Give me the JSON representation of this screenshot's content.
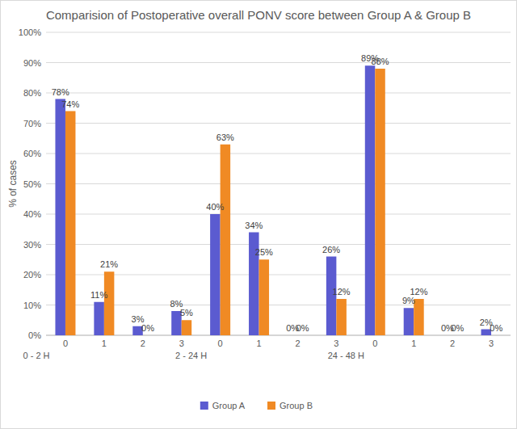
{
  "chart_data": {
    "type": "bar",
    "title": "Comparision of Postoperative overall PONV score between Group A & Group B",
    "y_label": "% of cases",
    "categories": [
      "0",
      "1",
      "2",
      "3",
      "0",
      "1",
      "2",
      "3",
      "0",
      "1",
      "2",
      "3"
    ],
    "category_groups": [
      "0 - 2 H",
      "2 - 24 H",
      "24 - 48 H"
    ],
    "series": [
      {
        "name": "Group A",
        "color": "#5b5bd0",
        "values": [
          78,
          11,
          3,
          8,
          40,
          34,
          0,
          26,
          89,
          9,
          0,
          2
        ],
        "value_labels": [
          "78%",
          "11%",
          "3%",
          "8%",
          "40%",
          "34%",
          "0%",
          "26%",
          "89%",
          "9%",
          "0%",
          "2%"
        ]
      },
      {
        "name": "Group B",
        "color": "#f08a24",
        "values": [
          74,
          21,
          0,
          5,
          63,
          25,
          0,
          12,
          88,
          12,
          0,
          0
        ],
        "value_labels": [
          "74%",
          "21%",
          "0%",
          "5%",
          "63%",
          "25%",
          "0%",
          "12%",
          "88%",
          "12%",
          "0%",
          "0%"
        ]
      }
    ],
    "ylim": [
      0,
      100
    ],
    "yticks": [
      {
        "value": 0,
        "label": "0%"
      },
      {
        "value": 10,
        "label": "10%"
      },
      {
        "value": 20,
        "label": "20%"
      },
      {
        "value": 30,
        "label": "30%"
      },
      {
        "value": 40,
        "label": "40%"
      },
      {
        "value": 50,
        "label": "50%"
      },
      {
        "value": 60,
        "label": "60%"
      },
      {
        "value": 70,
        "label": "70%"
      },
      {
        "value": 80,
        "label": "80%"
      },
      {
        "value": 90,
        "label": "90%"
      },
      {
        "value": 100,
        "label": "100%"
      }
    ],
    "grid": true,
    "data_labels": true,
    "legend": "bottom"
  }
}
